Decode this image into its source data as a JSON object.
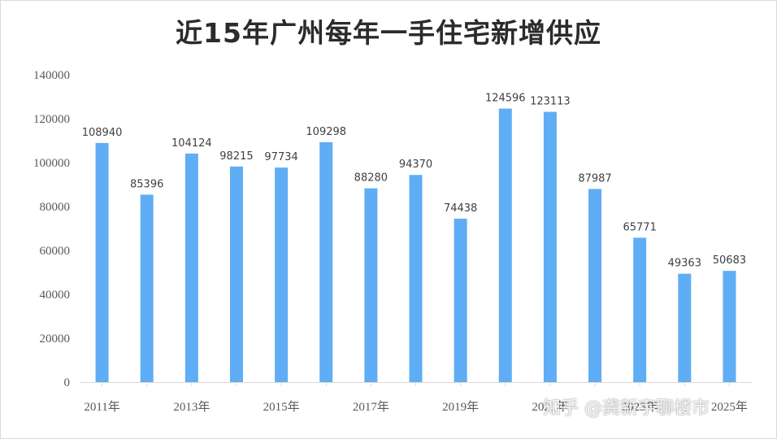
{
  "chart_data": {
    "type": "bar",
    "title": "近15年广州每年一手住宅新增供应",
    "categories": [
      "2011年",
      "",
      "2013年",
      "",
      "2015年",
      "",
      "2017年",
      "",
      "2019年",
      "",
      "2021年",
      "",
      "2023年",
      "",
      "2025年"
    ],
    "values": [
      108940,
      85396,
      104124,
      98215,
      97734,
      109298,
      88280,
      94370,
      74438,
      124596,
      123113,
      87987,
      65771,
      49363,
      50683
    ],
    "ylim": [
      0,
      140000
    ],
    "yticks": [
      0,
      20000,
      40000,
      60000,
      80000,
      100000,
      120000,
      140000
    ],
    "grid": false,
    "bar_color": "#5fadf5",
    "xlabel": "",
    "ylabel": ""
  },
  "watermark": "知乎 @龚新宇聊楼市"
}
